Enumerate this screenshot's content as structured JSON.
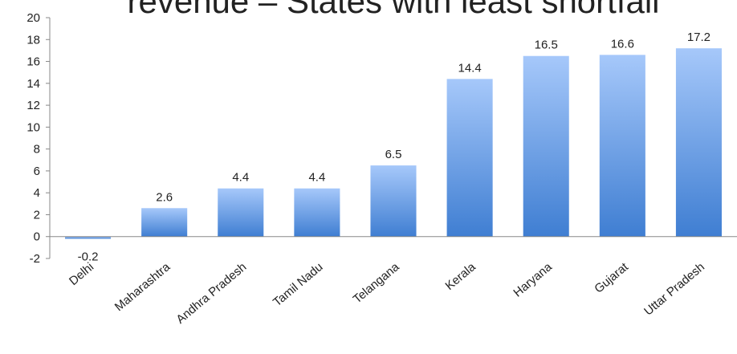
{
  "chart_data": {
    "type": "bar",
    "title": "revenue – States with least shortfall",
    "categories": [
      "Delhi",
      "Maharashtra",
      "Andhra Pradesh",
      "Tamil Nadu",
      "Telangana",
      "Kerala",
      "Haryana",
      "Gujarat",
      "Uttar Pradesh"
    ],
    "values": [
      -0.2,
      2.6,
      4.4,
      4.4,
      6.5,
      14.4,
      16.5,
      16.6,
      17.2
    ],
    "color": "#4a86d6",
    "ylim": [
      -2,
      20
    ],
    "yticks": [
      -2,
      0,
      2,
      4,
      6,
      8,
      10,
      12,
      14,
      16,
      18,
      20
    ],
    "grid": false
  }
}
